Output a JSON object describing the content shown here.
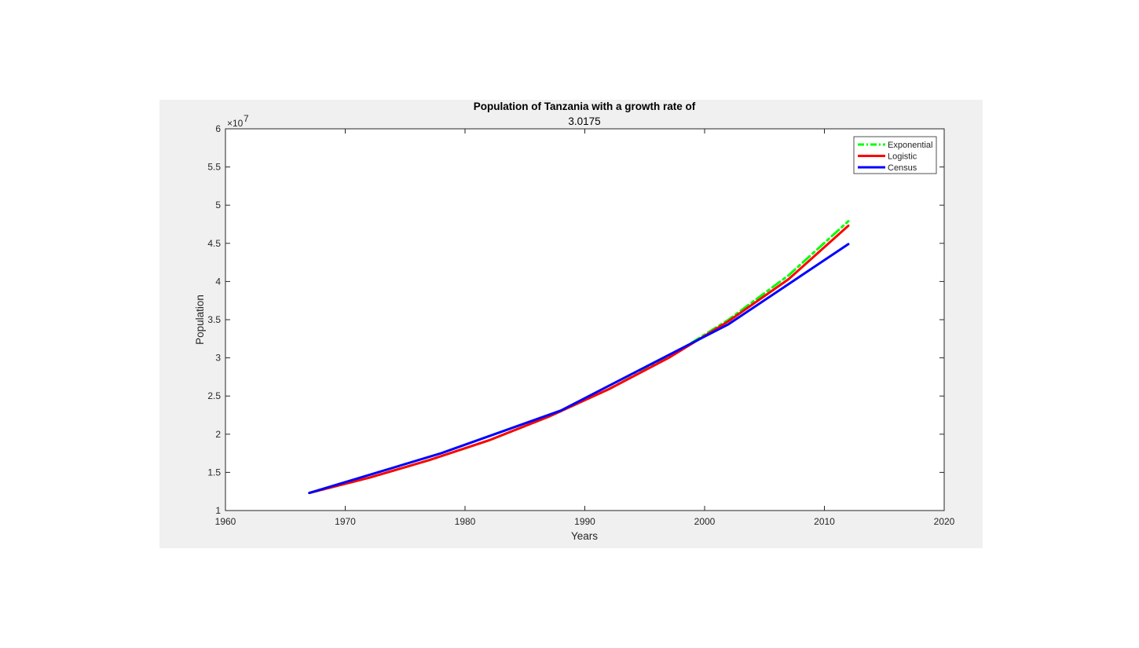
{
  "chart_data": {
    "type": "line",
    "title": "Population of Tanzania with a growth rate of",
    "subtitle": "3.0175",
    "xlabel": "Years",
    "ylabel": "Population",
    "y_exponent": "7",
    "y_exponent_prefix": "×10",
    "xlim": [
      1960,
      2020
    ],
    "ylim": [
      10000000,
      60000000
    ],
    "x_ticks": [
      1960,
      1970,
      1980,
      1990,
      2000,
      2010,
      2020
    ],
    "x_tick_labels": [
      "1960",
      "1970",
      "1980",
      "1990",
      "2000",
      "2010",
      "2020"
    ],
    "y_ticks": [
      10000000,
      15000000,
      20000000,
      25000000,
      30000000,
      35000000,
      40000000,
      45000000,
      50000000,
      55000000,
      60000000
    ],
    "y_tick_labels": [
      "1",
      "1.5",
      "2",
      "2.5",
      "3",
      "3.5",
      "4",
      "4.5",
      "5",
      "5.5",
      "6"
    ],
    "grid": false,
    "legend_position": "top-right",
    "series": [
      {
        "name": "Exponential",
        "color": "#00ff00",
        "style": "dash-dot",
        "x": [
          1967,
          1972,
          1977,
          1982,
          1987,
          1992,
          1997,
          2002,
          2007,
          2012
        ],
        "y": [
          12300000,
          14300000,
          16600000,
          19200000,
          22300000,
          25900000,
          30100000,
          35000000,
          40800000,
          47900000
        ]
      },
      {
        "name": "Logistic",
        "color": "#ff0000",
        "style": "solid",
        "x": [
          1967,
          1972,
          1977,
          1982,
          1987,
          1992,
          1997,
          2002,
          2007,
          2012
        ],
        "y": [
          12300000,
          14300000,
          16600000,
          19200000,
          22300000,
          25900000,
          30000000,
          34800000,
          40300000,
          47300000
        ]
      },
      {
        "name": "Census",
        "color": "#0000ff",
        "style": "solid",
        "x": [
          1967,
          1978,
          1988,
          2002,
          2012
        ],
        "y": [
          12300000,
          17500000,
          23100000,
          34400000,
          44900000
        ]
      }
    ]
  }
}
